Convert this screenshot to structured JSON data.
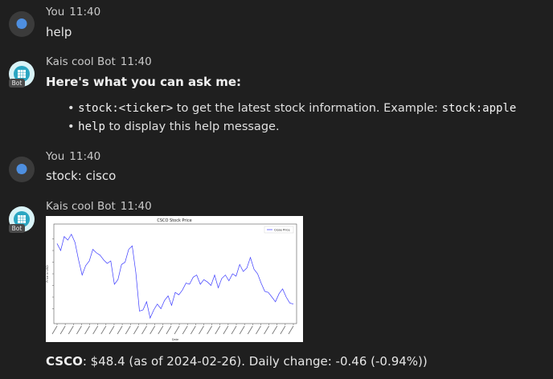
{
  "messages": [
    {
      "sender": "You",
      "time": "11:40",
      "text": "help"
    },
    {
      "sender": "Kais cool Bot",
      "time": "11:40",
      "badge": "Bot",
      "heading": "Here's what you can ask me:",
      "items": [
        {
          "code": "stock:<ticker>",
          "text": " to get the latest stock information. Example: ",
          "code2": "stock:apple"
        },
        {
          "code": "help",
          "text": " to display this help message."
        }
      ]
    },
    {
      "sender": "You",
      "time": "11:40",
      "text": "stock: cisco"
    },
    {
      "sender": "Kais cool Bot",
      "time": "11:40",
      "badge": "Bot",
      "summary": {
        "ticker": "CSCO",
        "rest": ": $48.4 (as of 2024-02-26). Daily change: -0.46 (-0.94%))"
      }
    }
  ],
  "icons": {
    "user_avatar": "chat-bubble-icon",
    "bot_avatar": "bot-grid-icon"
  },
  "colors": {
    "background": "#1f1f1f",
    "line": "#3a3aff",
    "avatar_bot": "#d9f3f7"
  },
  "chart_data": {
    "type": "line",
    "title": "CSCO Stock Price",
    "xlabel": "Date",
    "ylabel": "Price in USD",
    "legend": "top-right",
    "series": [
      {
        "name": "Close Price",
        "values": [
          53.6,
          53.0,
          54.2,
          53.9,
          54.4,
          53.7,
          52.2,
          50.9,
          51.7,
          52.1,
          53.1,
          52.8,
          52.6,
          52.2,
          51.9,
          52.1,
          50.1,
          50.5,
          51.8,
          52.0,
          53.1,
          53.4,
          51.1,
          47.8,
          47.9,
          48.6,
          47.2,
          47.9,
          48.4,
          48.0,
          48.7,
          49.1,
          48.3,
          49.4,
          49.2,
          49.6,
          50.2,
          50.1,
          50.7,
          50.9,
          50.1,
          50.5,
          50.3,
          50.0,
          50.9,
          49.8,
          50.6,
          50.9,
          50.4,
          51.0,
          50.8,
          51.8,
          51.2,
          51.5,
          52.4,
          51.4,
          51.0,
          50.2,
          49.5,
          49.4,
          49.0,
          48.6,
          49.3,
          49.7,
          49.0,
          48.5,
          48.4
        ]
      }
    ],
    "ylim": [
      47,
      55
    ],
    "x_range": [
      "2023-04",
      "2024-02"
    ]
  }
}
